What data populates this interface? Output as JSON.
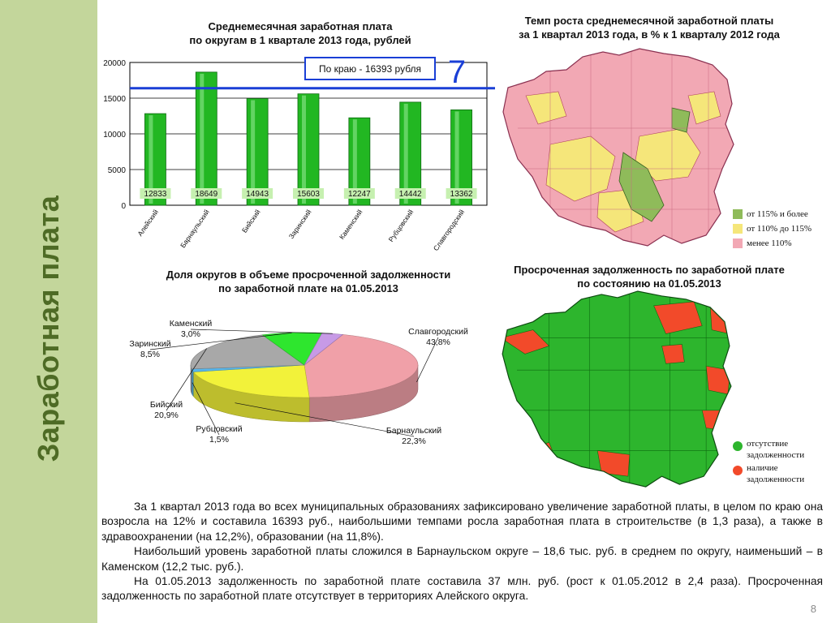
{
  "sidebar": {
    "title": "Заработная плата"
  },
  "bar_chart": {
    "title_lines": [
      "Среднемесячная заработная плата",
      "по округам  в 1 квартале 2013 года, рублей"
    ],
    "callout": "По краю - 16393 рубля",
    "callout_arrow": "7",
    "bar_color": "#22b722",
    "ref_line_color": "#1a3fd6"
  },
  "map1": {
    "title_lines": [
      "Темп роста среднемесячной заработной платы",
      "за 1 квартал 2013 года, в % к 1 кварталу 2012 года"
    ],
    "legend": [
      {
        "label": "от 115% и более",
        "color": "#8fbb5a"
      },
      {
        "label": "от 110% до 115%",
        "color": "#f5e67a"
      },
      {
        "label": "менее 110%",
        "color": "#f2a8b4"
      }
    ]
  },
  "pie_chart": {
    "title_lines": [
      "Доля округов в объеме просроченной задолженности",
      "по заработной плате на  01.05.2013"
    ]
  },
  "map2": {
    "title_lines": [
      "Просроченная задолженность по заработной плате",
      "по состоянию на 01.05.2013"
    ],
    "legend": [
      {
        "label": "отсутствие задолженности",
        "color": "#2db52d"
      },
      {
        "label": "наличие задолженности",
        "color": "#f24a2a"
      }
    ]
  },
  "text": {
    "paragraphs": [
      "За 1 квартал 2013 года во всех муниципальных образованиях зафиксировано увеличение заработной платы, в целом по краю она возросла на 12% и составила 16393 руб., наибольшими темпами росла заработная плата в строительстве (в 1,3 раза), а также в здравоохранении (на 12,2%), образовании (на 11,8%).",
      "Наибольший уровень заработной платы сложился в Барнаульском округе – 18,6 тыс. руб. в среднем по округу, наименьший – в Каменском (12,2 тыс. руб.).",
      "На 01.05.2013 задолженность по заработной плате составила 37 млн. руб. (рост к 01.05.2012 в 2,4 раза). Просроченная задолженность по заработной плате отсутствует в территориях Алейского округа."
    ]
  },
  "page_number": "8",
  "chart_data": [
    {
      "type": "bar",
      "title": "Среднемесячная заработная плата по округам  в 1 квартале 2013 года, рублей",
      "categories": [
        "Алейский",
        "Барнаульский",
        "Бийский",
        "Заринский",
        "Каменский",
        "Рубцовский",
        "Славгородский"
      ],
      "values": [
        12833,
        18649,
        14943,
        15603,
        12247,
        14442,
        13362
      ],
      "data_labels": [
        "12833",
        "18649",
        "14943",
        "15603",
        "12247",
        "14442",
        "13362"
      ],
      "y_ticks": [
        "0",
        "5000",
        "10000",
        "15000",
        "20000"
      ],
      "ylim": [
        0,
        20000
      ],
      "reference_line": 16393,
      "grid": true
    },
    {
      "type": "pie",
      "title": "Доля округов в объеме просроченной задолженности по заработной плате на  01.05.2013",
      "slices": [
        {
          "name": "Славгородский",
          "value": 43.8,
          "label": "43,8%",
          "color": "#f0a0a8"
        },
        {
          "name": "Барнаульский",
          "value": 22.3,
          "label": "22,3%",
          "color": "#f2f23a"
        },
        {
          "name": "Рубцовский",
          "value": 1.5,
          "label": "1,5%",
          "color": "#58b6ea"
        },
        {
          "name": "Бийский",
          "value": 20.9,
          "label": "20,9%",
          "color": "#a8a8a8"
        },
        {
          "name": "Заринский",
          "value": 8.5,
          "label": "8,5%",
          "color": "#2ee62e"
        },
        {
          "name": "Каменский",
          "value": 3.0,
          "label": "3,0%",
          "color": "#c79ae6"
        }
      ]
    }
  ]
}
